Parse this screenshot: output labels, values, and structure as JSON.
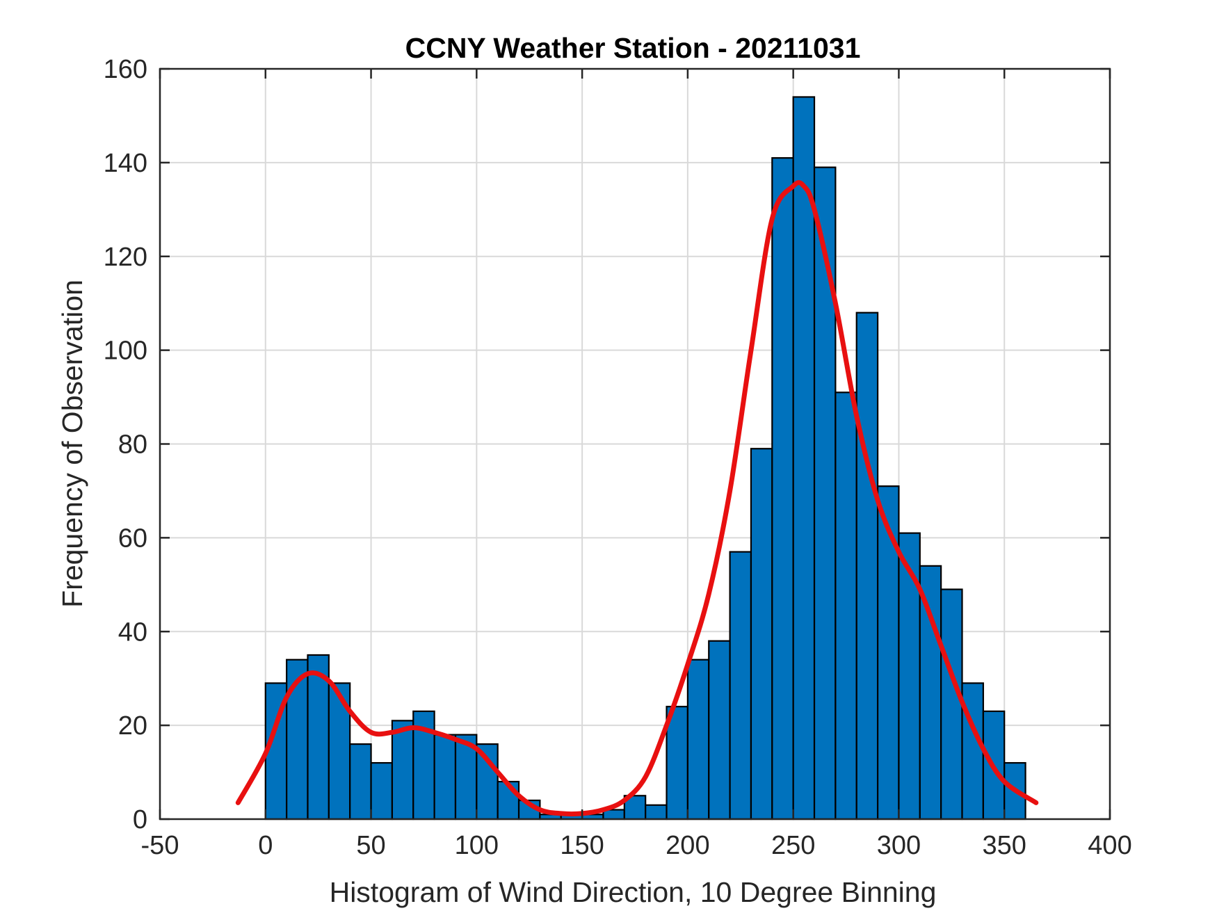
{
  "chart_data": {
    "type": "bar",
    "title": "CCNY Weather Station - 20211031",
    "xlabel": "Histogram of Wind Direction, 10 Degree Binning",
    "ylabel": "Frequency of Observation",
    "xlim": [
      -50,
      400
    ],
    "ylim": [
      0,
      160
    ],
    "xticks": [
      -50,
      0,
      50,
      100,
      150,
      200,
      250,
      300,
      350,
      400
    ],
    "yticks": [
      0,
      20,
      40,
      60,
      80,
      100,
      120,
      140,
      160
    ],
    "grid": true,
    "bin_width": 10,
    "bin_edges_start": 0,
    "bins": [
      {
        "x0": 0,
        "x1": 10,
        "value": 29
      },
      {
        "x0": 10,
        "x1": 20,
        "value": 34
      },
      {
        "x0": 20,
        "x1": 30,
        "value": 35
      },
      {
        "x0": 30,
        "x1": 40,
        "value": 29
      },
      {
        "x0": 40,
        "x1": 50,
        "value": 16
      },
      {
        "x0": 50,
        "x1": 60,
        "value": 12
      },
      {
        "x0": 60,
        "x1": 70,
        "value": 21
      },
      {
        "x0": 70,
        "x1": 80,
        "value": 23
      },
      {
        "x0": 80,
        "x1": 90,
        "value": 18
      },
      {
        "x0": 90,
        "x1": 100,
        "value": 18
      },
      {
        "x0": 100,
        "x1": 110,
        "value": 16
      },
      {
        "x0": 110,
        "x1": 120,
        "value": 8
      },
      {
        "x0": 120,
        "x1": 130,
        "value": 4
      },
      {
        "x0": 130,
        "x1": 140,
        "value": 1
      },
      {
        "x0": 140,
        "x1": 150,
        "value": 1
      },
      {
        "x0": 150,
        "x1": 160,
        "value": 1
      },
      {
        "x0": 160,
        "x1": 170,
        "value": 2
      },
      {
        "x0": 170,
        "x1": 180,
        "value": 5
      },
      {
        "x0": 180,
        "x1": 190,
        "value": 3
      },
      {
        "x0": 190,
        "x1": 200,
        "value": 24
      },
      {
        "x0": 200,
        "x1": 210,
        "value": 34
      },
      {
        "x0": 210,
        "x1": 220,
        "value": 38
      },
      {
        "x0": 220,
        "x1": 230,
        "value": 57
      },
      {
        "x0": 230,
        "x1": 240,
        "value": 79
      },
      {
        "x0": 240,
        "x1": 250,
        "value": 141
      },
      {
        "x0": 250,
        "x1": 260,
        "value": 154
      },
      {
        "x0": 260,
        "x1": 270,
        "value": 139
      },
      {
        "x0": 270,
        "x1": 280,
        "value": 91
      },
      {
        "x0": 280,
        "x1": 290,
        "value": 108
      },
      {
        "x0": 290,
        "x1": 300,
        "value": 71
      },
      {
        "x0": 300,
        "x1": 310,
        "value": 61
      },
      {
        "x0": 310,
        "x1": 320,
        "value": 54
      },
      {
        "x0": 320,
        "x1": 330,
        "value": 49
      },
      {
        "x0": 330,
        "x1": 340,
        "value": 29
      },
      {
        "x0": 340,
        "x1": 350,
        "value": 23
      },
      {
        "x0": 350,
        "x1": 360,
        "value": 12
      }
    ],
    "fit_curve": {
      "x": [
        -13,
        0,
        10,
        20,
        30,
        40,
        50,
        60,
        70,
        80,
        90,
        100,
        110,
        120,
        130,
        140,
        150,
        160,
        170,
        180,
        190,
        200,
        210,
        220,
        230,
        240,
        250,
        255,
        260,
        270,
        280,
        290,
        300,
        310,
        320,
        330,
        340,
        350,
        365
      ],
      "y": [
        3.5,
        14,
        26,
        31,
        29.5,
        23,
        18.5,
        18.5,
        19.5,
        18.5,
        17,
        15,
        10,
        5,
        2,
        1.2,
        1.2,
        2,
        4,
        9,
        20,
        33,
        48,
        70,
        100,
        128,
        135,
        135,
        130,
        110,
        86,
        68,
        57,
        49,
        37,
        25,
        15,
        8,
        3.5
      ]
    },
    "colors": {
      "bar_fill": "#0072BD",
      "bar_edge": "#000000",
      "curve": "#E81010",
      "grid": "#D9D9D9",
      "axis": "#262626"
    }
  }
}
